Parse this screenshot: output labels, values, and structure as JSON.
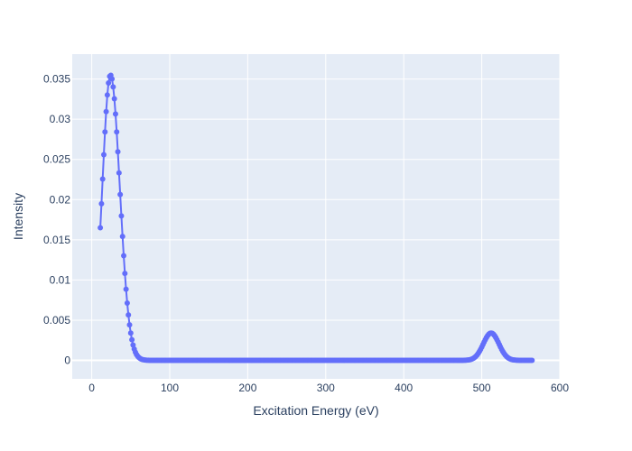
{
  "chart_data": {
    "type": "scatter",
    "mode": "lines+markers",
    "xlabel": "Excitation Energy (eV)",
    "ylabel": "Intensity",
    "xlim": [
      -25,
      600
    ],
    "ylim": [
      -0.0023,
      0.0381
    ],
    "x_ticks": [
      0,
      100,
      200,
      300,
      400,
      500,
      600
    ],
    "y_ticks": [
      0,
      0.005,
      0.01,
      0.015,
      0.02,
      0.025,
      0.03,
      0.035
    ],
    "y_tick_labels": [
      "0",
      "0.005",
      "0.01",
      "0.015",
      "0.02",
      "0.025",
      "0.03",
      "0.035"
    ],
    "grid": true,
    "colors": {
      "series": "#636efa",
      "plot_bg": "#e5ecf6",
      "grid": "#ffffff",
      "text": "#2a3f5f"
    },
    "series": [
      {
        "x_range": [
          11,
          565
        ],
        "x_step": 1.5,
        "components": [
          {
            "amplitude": 0.0355,
            "center": 24,
            "sigma_left": 10.5,
            "sigma_right": 12
          },
          {
            "amplitude": 0.0034,
            "center": 512,
            "sigma_left": 10,
            "sigma_right": 10
          }
        ],
        "key_points": [
          [
            11,
            0.0171
          ],
          [
            15,
            0.0245
          ],
          [
            20,
            0.0325
          ],
          [
            24,
            0.0355
          ],
          [
            30,
            0.0315
          ],
          [
            35,
            0.024
          ],
          [
            40,
            0.0155
          ],
          [
            45,
            0.008
          ],
          [
            50,
            0.0035
          ],
          [
            60,
            0.0005
          ],
          [
            70,
            0.0
          ],
          [
            480,
            0.0
          ],
          [
            500,
            0.0017
          ],
          [
            512,
            0.0034
          ],
          [
            525,
            0.0015
          ],
          [
            545,
            0.0
          ],
          [
            565,
            0.0
          ]
        ]
      }
    ]
  }
}
